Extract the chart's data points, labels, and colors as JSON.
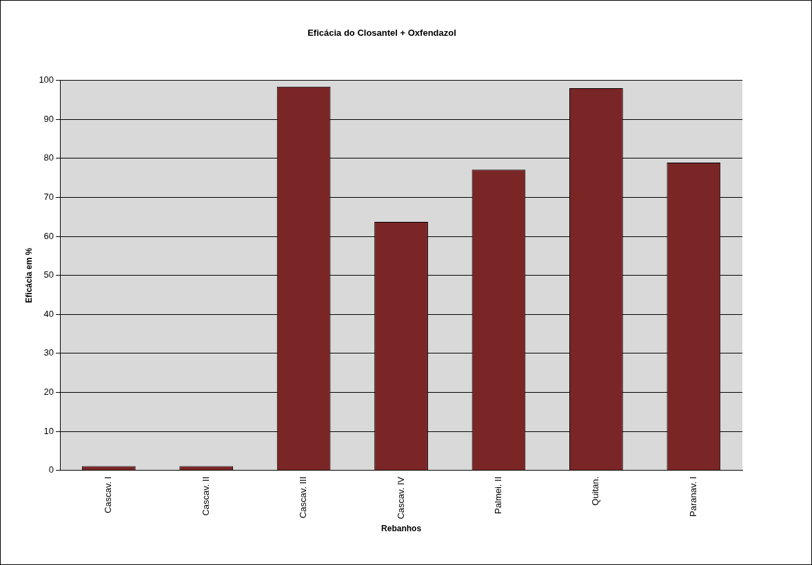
{
  "chart_data": {
    "type": "bar",
    "title": "Eficácia do Closantel + Oxfendazol",
    "xlabel": "Rebanhos",
    "ylabel": "Eficácia em %",
    "categories": [
      "Cascav. I",
      "Cascav. II",
      "Cascav. III",
      "Cascav. IV",
      "Palmei. II",
      "Quitan.",
      "Paranav. I"
    ],
    "values": [
      1.1,
      1.1,
      98.4,
      63.7,
      77.1,
      98.0,
      78.9
    ],
    "color": "#7b2626",
    "ylim": [
      0,
      100
    ],
    "yticks": [
      0,
      10,
      20,
      30,
      40,
      50,
      60,
      70,
      80,
      90,
      100
    ],
    "grid": "y",
    "legend": false
  }
}
